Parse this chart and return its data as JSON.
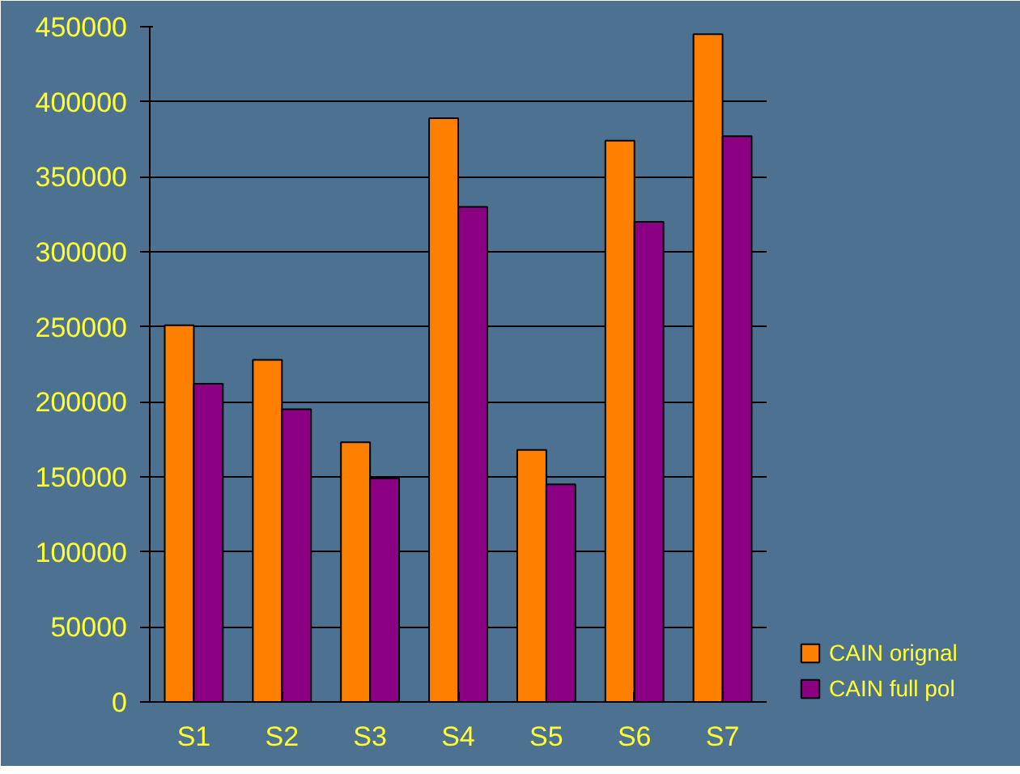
{
  "chart_data": {
    "type": "bar",
    "categories": [
      "S1",
      "S2",
      "S3",
      "S4",
      "S5",
      "S6",
      "S7"
    ],
    "series": [
      {
        "name": "CAIN orignal",
        "color": "#ff7f00",
        "values": [
          251000,
          228000,
          173000,
          389000,
          168000,
          374000,
          445000
        ]
      },
      {
        "name": "CAIN full pol",
        "color": "#8b0083",
        "values": [
          212000,
          195000,
          149000,
          330000,
          145000,
          320000,
          377000
        ]
      }
    ],
    "ylim": [
      0,
      450000
    ],
    "yticks": [
      0,
      50000,
      100000,
      150000,
      200000,
      250000,
      300000,
      350000,
      400000,
      450000
    ],
    "grid": "y",
    "legend": "right"
  }
}
